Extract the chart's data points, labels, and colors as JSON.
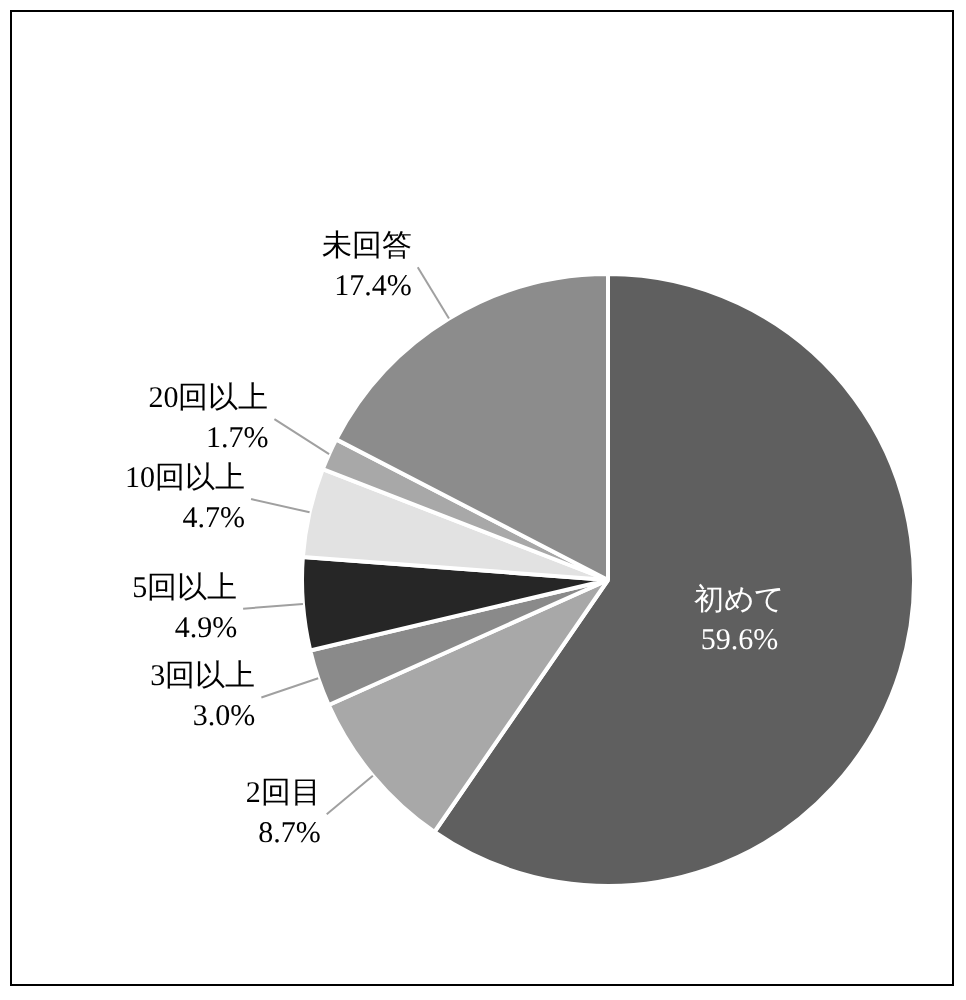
{
  "chart_data": {
    "type": "pie",
    "categories": [
      "初めて",
      "2回目",
      "3回以上",
      "5回以上",
      "10回以上",
      "20回以上",
      "未回答"
    ],
    "values": [
      59.6,
      8.7,
      3.0,
      4.9,
      4.7,
      1.7,
      17.4
    ],
    "value_labels": [
      "59.6%",
      "8.7%",
      "3.0%",
      "4.9%",
      "4.7%",
      "1.7%",
      "17.4%"
    ],
    "colors": [
      "#5f5f5f",
      "#a8a8a8",
      "#8a8a8a",
      "#262626",
      "#e2e2e2",
      "#a8a8a8",
      "#8c8c8c"
    ],
    "legend": false
  }
}
